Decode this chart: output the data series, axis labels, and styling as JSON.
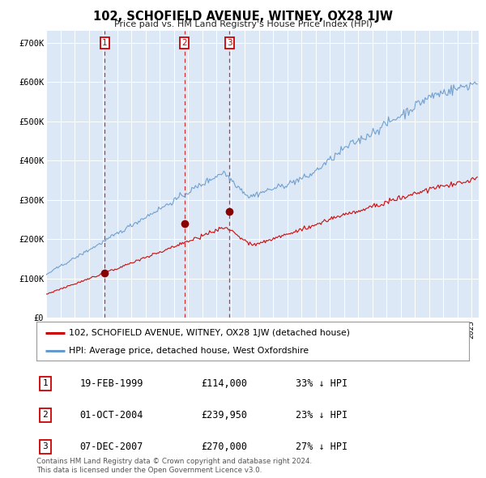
{
  "title": "102, SCHOFIELD AVENUE, WITNEY, OX28 1JW",
  "subtitle": "Price paid vs. HM Land Registry's House Price Index (HPI)",
  "bg_color": "#dce8f5",
  "red_line_label": "102, SCHOFIELD AVENUE, WITNEY, OX28 1JW (detached house)",
  "blue_line_label": "HPI: Average price, detached house, West Oxfordshire",
  "footer": "Contains HM Land Registry data © Crown copyright and database right 2024.\nThis data is licensed under the Open Government Licence v3.0.",
  "ylim": [
    0,
    730000
  ],
  "yticks": [
    0,
    100000,
    200000,
    300000,
    400000,
    500000,
    600000,
    700000
  ],
  "ytick_labels": [
    "£0",
    "£100K",
    "£200K",
    "£300K",
    "£400K",
    "£500K",
    "£600K",
    "£700K"
  ],
  "red_color": "#cc0000",
  "blue_color": "#6699cc",
  "dashed_color": "#cc3333",
  "marker_color": "#880000",
  "t1_year": 1999.13,
  "t1_price": 114000,
  "t2_year": 2004.75,
  "t2_price": 239950,
  "t3_year": 2007.93,
  "t3_price": 270000,
  "rows": [
    {
      "num": "1",
      "date": "19-FEB-1999",
      "price": "£114,000",
      "pct": "33% ↓ HPI"
    },
    {
      "num": "2",
      "date": "01-OCT-2004",
      "price": "£239,950",
      "pct": "23% ↓ HPI"
    },
    {
      "num": "3",
      "date": "07-DEC-2007",
      "price": "£270,000",
      "pct": "27% ↓ HPI"
    }
  ]
}
